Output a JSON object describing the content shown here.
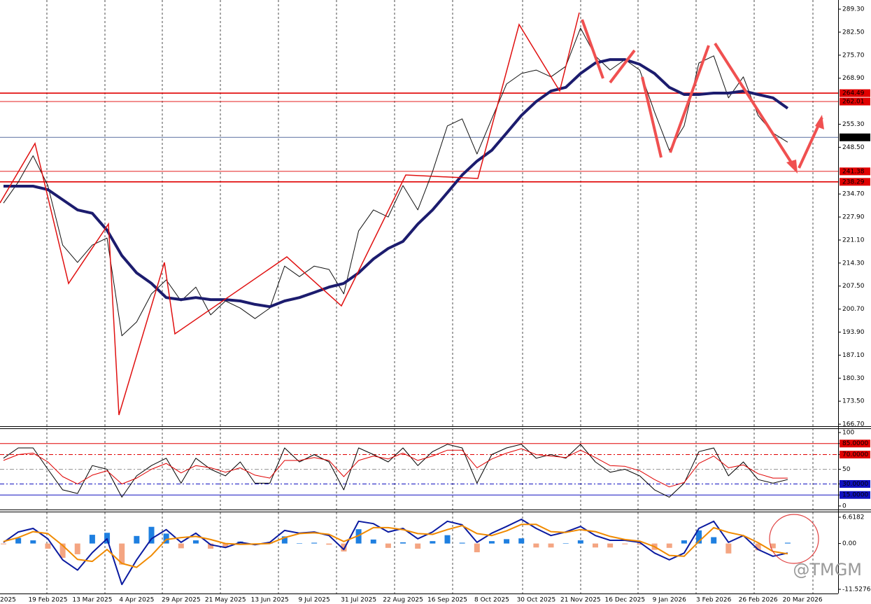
{
  "chart_data": [
    {
      "type": "line",
      "categories": [
        "2025",
        null,
        null,
        "19 Feb 2025",
        null,
        null,
        "13 Mar 2025",
        null,
        null,
        "4 Apr 2025",
        null,
        null,
        "29 Apr 2025",
        null,
        null,
        "21 May 2025",
        null,
        null,
        "13 Jun 2025",
        null,
        null,
        "9 Jul 2025",
        null,
        null,
        "31 Jul 2025",
        null,
        null,
        "22 Aug 2025",
        null,
        null,
        "16 Sep 2025",
        null,
        null,
        "8 Oct 2025",
        null,
        null,
        "30 Oct 2025",
        null,
        null,
        "21 Nov 2025",
        null,
        null,
        "16 Dec 2025",
        null,
        null,
        "9 Jan 2026",
        null,
        null,
        "3 Feb 2026",
        null,
        null,
        "26 Feb 2026",
        null,
        null,
        "20 Mar 2026"
      ],
      "series": [
        {
          "color": "#111111",
          "values": [
            232,
            238.2,
            246,
            237.2,
            219.6,
            214.5,
            219.6,
            221.7,
            192.8,
            196.9,
            205.2,
            209.3,
            203.1,
            207.2,
            199,
            203.1,
            201,
            197.9,
            201,
            213.4,
            210.3,
            213.4,
            212.4,
            205.2,
            223.8,
            230,
            227.9,
            237.2,
            230,
            241.3,
            254.8,
            256.9,
            246.5,
            256.9,
            267.2,
            270.3,
            271.3,
            269.3,
            272.4,
            283.7,
            275.5,
            271.3,
            274.4,
            271.3,
            258.9,
            247.6,
            254.8,
            273.4,
            275.5,
            263.1,
            269.3,
            257.9,
            252.7,
            250,
            null
          ]
        },
        {
          "color": "#1c1c6e",
          "values": [
            237,
            237,
            237,
            236,
            233,
            230,
            229,
            224,
            216.5,
            211.4,
            208.3,
            204.1,
            203.5,
            204.1,
            203.5,
            203.5,
            203.1,
            202.1,
            201.4,
            203.1,
            204.1,
            205.6,
            207.2,
            208.3,
            211.4,
            215.5,
            218.6,
            220.7,
            225.8,
            230,
            235.1,
            240.3,
            244.4,
            247.6,
            252.7,
            257.9,
            262,
            265.1,
            266.2,
            270.3,
            273.4,
            274.4,
            274.4,
            273,
            270.3,
            266.2,
            264.1,
            264.1,
            264.5,
            264.5,
            265.1,
            264.1,
            263.1,
            260,
            null
          ]
        }
      ],
      "ylim": [
        166.1,
        292.0
      ],
      "yticks": [
        {
          "value": 289.3,
          "label": "289.30"
        },
        {
          "value": 282.5,
          "label": "282.50"
        },
        {
          "value": 275.7,
          "label": "275.70"
        },
        {
          "value": 268.9,
          "label": "268.90"
        },
        {
          "value": 255.3,
          "label": "255.30"
        },
        {
          "value": 248.5,
          "label": "248.50"
        },
        {
          "value": 234.7,
          "label": "234.70"
        },
        {
          "value": 227.9,
          "label": "227.90"
        },
        {
          "value": 221.1,
          "label": "221.10"
        },
        {
          "value": 214.3,
          "label": "214.30"
        },
        {
          "value": 207.5,
          "label": "207.50"
        },
        {
          "value": 200.7,
          "label": "200.70"
        },
        {
          "value": 193.9,
          "label": "193.90"
        },
        {
          "value": 187.1,
          "label": "187.10"
        },
        {
          "value": 180.3,
          "label": "180.30"
        },
        {
          "value": 173.5,
          "label": "173.50"
        },
        {
          "value": 166.7,
          "label": "166.70"
        }
      ],
      "levels": [
        {
          "value": 264.49,
          "color": "#e00000"
        },
        {
          "value": 262.01,
          "color": "#e00000"
        },
        {
          "value": 251.43,
          "color": "#000000"
        },
        {
          "value": 241.38,
          "color": "#e00000"
        },
        {
          "value": 238.29,
          "color": "#e00000"
        }
      ]
    },
    {
      "type": "line",
      "series": [
        {
          "color": "#000000",
          "values": [
            65,
            79,
            79,
            50,
            22,
            17,
            55,
            50,
            12,
            41,
            55,
            65,
            31,
            65,
            50,
            41,
            60,
            31,
            31,
            79,
            60,
            70,
            60,
            22,
            79,
            70,
            60,
            79,
            55,
            74,
            84,
            79,
            31,
            70,
            79,
            84,
            65,
            70,
            65,
            84,
            60,
            46,
            50,
            41,
            22,
            12,
            31,
            74,
            79,
            41,
            60,
            36,
            31,
            36,
            null
          ]
        },
        {
          "color": "#e00000",
          "values": [
            62,
            70,
            72,
            60,
            40,
            30,
            42,
            48,
            30,
            38,
            50,
            58,
            45,
            55,
            52,
            46,
            52,
            42,
            38,
            62,
            62,
            66,
            62,
            40,
            62,
            68,
            64,
            72,
            62,
            68,
            76,
            76,
            52,
            64,
            72,
            78,
            70,
            68,
            66,
            76,
            66,
            55,
            54,
            48,
            36,
            26,
            32,
            58,
            68,
            52,
            56,
            44,
            38,
            38,
            null
          ]
        }
      ],
      "ylim": [
        -4.8,
        105.7
      ],
      "yticks": [
        100,
        {
          "value": 85,
          "label": "85.0000"
        },
        {
          "value": 70,
          "label": "70.0000"
        },
        50,
        {
          "value": 30,
          "label": "30.0000"
        },
        {
          "value": 15,
          "label": "15.0000"
        },
        0
      ],
      "level_colors": [
        null,
        "#e00000",
        "#e00000",
        "#999999",
        "#1010c0",
        "#1010c0",
        null
      ],
      "level_dashed": [
        null,
        false,
        true,
        true,
        true,
        false,
        null
      ]
    },
    {
      "type": "combo",
      "series": [
        {
          "kind": "bar",
          "color": "#1e7fe0",
          "negative_color": "#f4a582",
          "values": [
            -0.2,
            1.4,
            0.8,
            -1.3,
            -3.6,
            -2.7,
            2.2,
            2.7,
            -5.3,
            1.9,
            4.2,
            2.5,
            -1.2,
            0.8,
            -1.3,
            -1,
            0.5,
            -0.2,
            0.3,
            1.8,
            0.1,
            0.2,
            -0.3,
            -2,
            3.6,
            1,
            -1.1,
            0.3,
            -1.3,
            0.6,
            2.1,
            0.2,
            -2.2,
            0.6,
            1.1,
            1.3,
            -1,
            -1,
            0.1,
            0.8,
            -1,
            -1,
            -0.2,
            -0.3,
            -1.6,
            -1.1,
            0.8,
            3.3,
            1.6,
            -2.5,
            0,
            -1.7,
            -1.2,
            0.2,
            null
          ]
        },
        {
          "kind": "line",
          "color": "#0a1aa0",
          "values": [
            0.3,
            2.9,
            3.8,
            1.2,
            -4.1,
            -6.7,
            -2.3,
            1.2,
            -10.3,
            -4.1,
            1.2,
            3.5,
            0.3,
            2.6,
            -0.3,
            -1,
            0.3,
            -0.3,
            0.3,
            3.3,
            2.6,
            2.9,
            2,
            -1.5,
            5.6,
            5,
            2.9,
            3.8,
            1.2,
            2.9,
            5.6,
            4.7,
            0.3,
            2.6,
            4.3,
            6.1,
            3.8,
            2,
            2.9,
            4.3,
            2,
            0.8,
            0.8,
            0.3,
            -2.4,
            -4.1,
            -2.4,
            3.8,
            5.6,
            0.3,
            2,
            -1.5,
            -3.2,
            -2.4,
            null
          ]
        },
        {
          "kind": "line",
          "color": "#f08a00",
          "values": [
            0.5,
            1.5,
            3.0,
            2.5,
            -0.5,
            -4,
            -4.5,
            -1.5,
            -5,
            -6,
            -3,
            1,
            1.5,
            1.8,
            1,
            0,
            -0.2,
            -0.1,
            0,
            1.5,
            2.5,
            2.7,
            2.3,
            0.5,
            2,
            4,
            4,
            3.5,
            2.5,
            2.3,
            3.5,
            4.5,
            2.5,
            2,
            3.2,
            4.8,
            4.8,
            3,
            2.8,
            3.5,
            3,
            1.8,
            1,
            0.6,
            -0.8,
            -3,
            -3.2,
            0.5,
            4,
            2.8,
            2,
            0.2,
            -2,
            -2.6,
            null
          ]
        }
      ],
      "ylim": [
        -12.58,
        8.03
      ],
      "yticks": [
        6.6182,
        {
          "value": 0,
          "label": "0.00"
        },
        -11.5276
      ]
    }
  ],
  "watermark": "@TMGM"
}
